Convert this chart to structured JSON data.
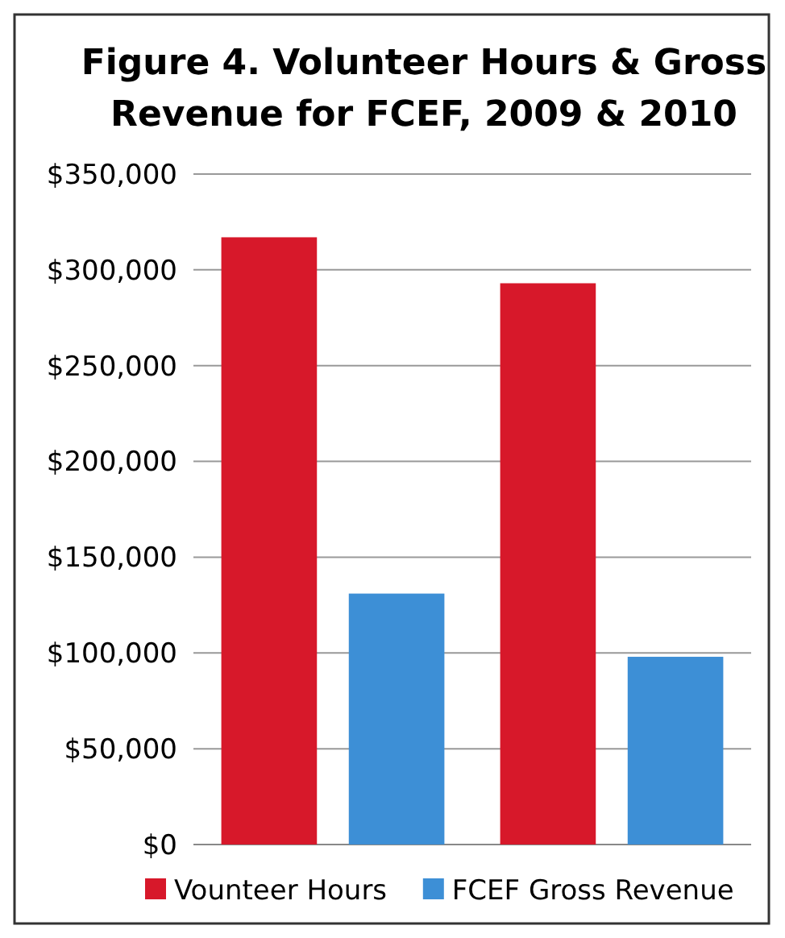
{
  "chart_data": {
    "type": "bar",
    "title": "Figure 4. Volunteer Hours & Gross Revenue for FCEF, 2009 & 2010",
    "categories": [
      null,
      null
    ],
    "series": [
      {
        "name": "Vounteer Hours",
        "color": "#d7182a",
        "values": [
          317000,
          293000
        ]
      },
      {
        "name": "FCEF Gross Revenue",
        "color": "#3d8fd6",
        "values": [
          131000,
          98000
        ]
      }
    ],
    "ylim": [
      0,
      350000
    ],
    "yticks": [
      {
        "value": 0,
        "label": "$0"
      },
      {
        "value": 50000,
        "label": "$50,000"
      },
      {
        "value": 100000,
        "label": "$100,000"
      },
      {
        "value": 150000,
        "label": "$150,000"
      },
      {
        "value": 200000,
        "label": "$200,000"
      },
      {
        "value": 250000,
        "label": "$250,000"
      },
      {
        "value": 300000,
        "label": "$300,000"
      },
      {
        "value": 350000,
        "label": "$350,000"
      }
    ],
    "grid": "y",
    "legend": "bottom"
  }
}
